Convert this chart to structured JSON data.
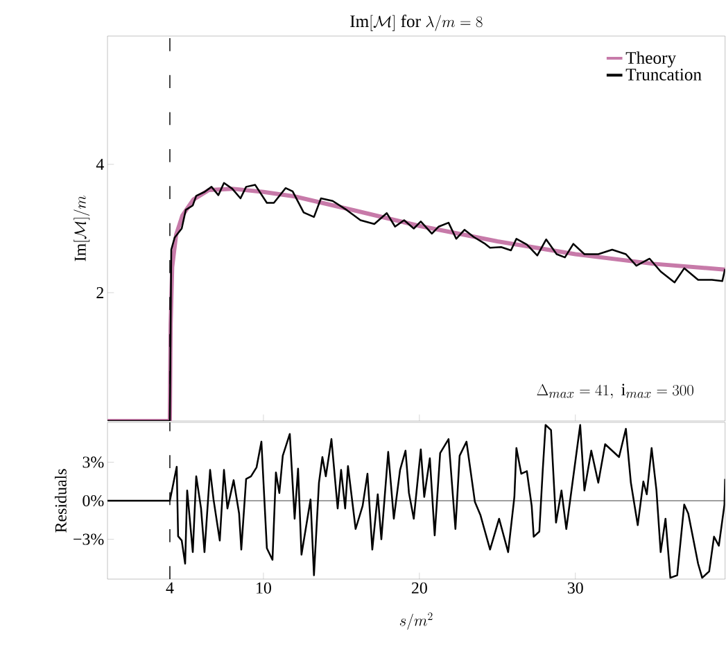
{
  "chart_data": [
    {
      "type": "line",
      "title": "\\mathrm{Im}[\\mathcal{M}]\\ \\mathrm{for}\\ \\lambda/m=8",
      "ylabel": "\\mathrm{Im}[\\mathcal{M}]/m",
      "xlim": [
        0,
        39.6
      ],
      "ylim": [
        0,
        6
      ],
      "xticks": [
        4,
        10,
        20,
        30
      ],
      "yticks": [
        2,
        4
      ],
      "tick_labels": "y",
      "legend": "top right",
      "annotations": [
        "\\Delta_{max}=41,\\ \\mathrm{i}_{max}=300"
      ],
      "ref_lines": [
        {
          "axis": "x",
          "value": 4,
          "color": "#000000",
          "line_style": "dashed"
        }
      ],
      "series": [
        {
          "name": "Theory",
          "color": "#c77aa9",
          "x": [
            0,
            4,
            4.05,
            4.15,
            4.4,
            4.8,
            5.5,
            6.5,
            8,
            10,
            12,
            15,
            20,
            25,
            30,
            35,
            39.6
          ],
          "values": [
            0,
            0,
            1.5,
            2.4,
            2.9,
            3.2,
            3.45,
            3.6,
            3.62,
            3.57,
            3.5,
            3.33,
            3.04,
            2.8,
            2.6,
            2.45,
            2.36
          ]
        },
        {
          "name": "Truncation",
          "color": "#000000",
          "x": [
            0,
            4,
            4.09,
            4.31,
            4.76,
            5.02,
            5.47,
            5.69,
            6.22,
            6.67,
            7.11,
            7.47,
            8.0,
            8.53,
            8.89,
            9.47,
            10.22,
            10.67,
            11.42,
            11.87,
            12.58,
            13.24,
            13.69,
            14.44,
            15.33,
            16.22,
            17.11,
            17.91,
            18.44,
            19.02,
            19.64,
            20.09,
            20.8,
            21.24,
            21.87,
            22.36,
            22.89,
            23.47,
            24.22,
            24.53,
            25.24,
            25.87,
            26.22,
            26.89,
            27.56,
            28.13,
            28.8,
            29.33,
            29.87,
            30.58,
            31.47,
            32.36,
            33.24,
            33.91,
            34.76,
            35.47,
            36.36,
            36.98,
            37.87,
            38.76,
            39.42,
            39.6
          ],
          "values": [
            0,
            0,
            2.67,
            2.86,
            3.0,
            3.29,
            3.36,
            3.51,
            3.57,
            3.65,
            3.52,
            3.71,
            3.62,
            3.47,
            3.65,
            3.68,
            3.4,
            3.4,
            3.63,
            3.58,
            3.25,
            3.18,
            3.47,
            3.43,
            3.29,
            3.13,
            3.07,
            3.24,
            3.03,
            3.13,
            3.0,
            3.11,
            2.92,
            3.03,
            3.09,
            2.84,
            2.98,
            2.87,
            2.76,
            2.7,
            2.71,
            2.66,
            2.84,
            2.75,
            2.58,
            2.83,
            2.6,
            2.55,
            2.76,
            2.6,
            2.6,
            2.67,
            2.6,
            2.42,
            2.53,
            2.33,
            2.16,
            2.38,
            2.2,
            2.2,
            2.18,
            2.37
          ]
        }
      ]
    },
    {
      "type": "line",
      "xlabel": "s/m^2",
      "ylabel": "Residuals",
      "xlim": [
        0,
        39.6
      ],
      "ylim": [
        -6.1,
        6.1
      ],
      "xticks": [
        4,
        10,
        20,
        30
      ],
      "yticks": [
        {
          "value": -3,
          "label": "−3%"
        },
        {
          "value": 0,
          "label": "0%"
        },
        {
          "value": 3,
          "label": "3%"
        }
      ],
      "ref_lines": [
        {
          "axis": "x",
          "value": 4,
          "color": "#000000",
          "line_style": "dashed"
        },
        {
          "axis": "y",
          "value": 0,
          "color": "#000000",
          "line_style": "solid"
        }
      ],
      "series": [
        {
          "color": "#000000",
          "x": [
            0,
            4,
            4.44,
            4.53,
            4.76,
            4.98,
            5.11,
            5.47,
            5.69,
            6.0,
            6.22,
            6.58,
            6.8,
            7.2,
            7.47,
            7.69,
            8.09,
            8.44,
            8.58,
            8.89,
            9.2,
            9.56,
            9.87,
            10.22,
            10.58,
            10.8,
            11.02,
            11.24,
            11.69,
            12.0,
            12.22,
            12.44,
            13.02,
            13.24,
            13.56,
            13.78,
            14.0,
            14.36,
            14.76,
            14.98,
            15.24,
            15.42,
            15.91,
            16.36,
            16.67,
            16.98,
            17.33,
            17.56,
            18.0,
            18.36,
            18.76,
            19.11,
            19.33,
            19.64,
            20.09,
            20.31,
            20.67,
            20.98,
            21.33,
            21.87,
            22.31,
            22.58,
            23.02,
            23.56,
            23.91,
            24.53,
            25.11,
            25.69,
            26.09,
            26.22,
            26.53,
            26.89,
            27.2,
            27.33,
            27.69,
            27.91,
            28.09,
            28.44,
            28.76,
            29.11,
            29.42,
            30.31,
            30.58,
            31.02,
            31.47,
            31.91,
            32.8,
            33.24,
            33.56,
            34.0,
            34.36,
            34.58,
            34.89,
            35.2,
            35.47,
            35.78,
            36.09,
            36.53,
            36.98,
            37.24,
            37.87,
            38.13,
            38.58,
            38.89,
            39.2,
            39.56,
            39.6
          ],
          "values": [
            0,
            0,
            2.65,
            -2.76,
            -3.1,
            -4.9,
            0.8,
            -4.0,
            1.9,
            -0.6,
            -4.0,
            2.4,
            0.1,
            -3.1,
            2.4,
            -0.6,
            1.6,
            -1.0,
            -3.8,
            1.7,
            1.9,
            2.6,
            4.6,
            -3.7,
            -4.6,
            2.2,
            0.6,
            3.5,
            5.2,
            -1.4,
            2.5,
            -4.2,
            0.1,
            -5.8,
            1.4,
            3.4,
            1.9,
            4.8,
            -0.6,
            2.4,
            -0.6,
            2.7,
            -2.2,
            -0.4,
            2.1,
            -3.8,
            0.5,
            -3.0,
            3.8,
            -1.4,
            2.4,
            3.9,
            0.6,
            -1.4,
            4.0,
            0.3,
            3.3,
            -2.7,
            3.7,
            4.8,
            -2.2,
            3.5,
            4.6,
            -0.1,
            -1.1,
            -3.8,
            -1.4,
            -4.0,
            0.3,
            4.1,
            2.1,
            2.3,
            -0.4,
            -2.8,
            -2.4,
            2.4,
            5.9,
            5.5,
            -1.7,
            0.8,
            -2.2,
            5.9,
            0.8,
            3.9,
            1.4,
            4.4,
            3.4,
            5.6,
            1.4,
            -1.9,
            1.5,
            0.5,
            4.1,
            0.8,
            -4.0,
            -1.4,
            -6.0,
            -5.8,
            -0.3,
            -1.0,
            -4.9,
            -6.0,
            -5.5,
            -2.8,
            -3.5,
            -0.3,
            1.7
          ]
        }
      ]
    }
  ]
}
